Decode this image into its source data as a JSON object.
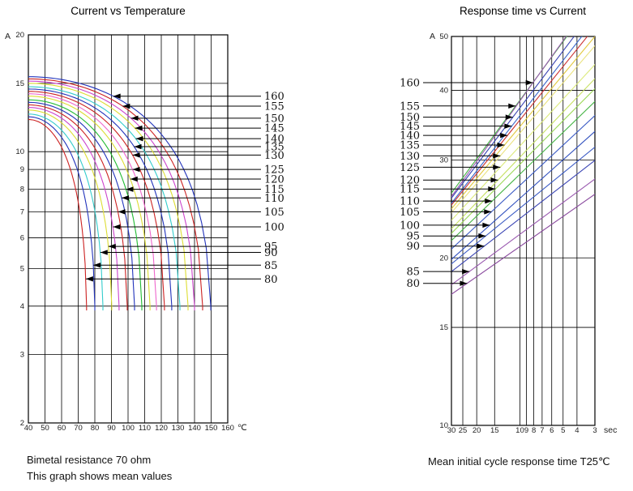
{
  "page": {
    "background": "#ffffff"
  },
  "captions": {
    "left_line1": "Bimetal resistance 70 ohm",
    "left_line2": "This graph shows mean values",
    "right": "Mean initial cycle response time T25℃"
  },
  "chart_data": [
    {
      "type": "line",
      "title": "Current vs Temperature",
      "xlabel": "℃",
      "ylabel": "A",
      "x_scale": "linear",
      "y_scale": "log",
      "xlim": [
        40,
        160
      ],
      "ylim": [
        2,
        20
      ],
      "x_ticks": [
        40,
        50,
        60,
        70,
        80,
        90,
        100,
        110,
        120,
        130,
        140,
        150,
        160
      ],
      "y_ticks": [
        20,
        15,
        10,
        9,
        8,
        7,
        6,
        5,
        4,
        3,
        2
      ],
      "y_tick_special": {
        "value": 15,
        "color": "#9b6fae"
      },
      "grid": true,
      "legend_position": "right-callouts",
      "series": [
        {
          "label": "80",
          "color": "#cc2222",
          "current_at_40C_A": 12.1,
          "dropout_temp_C": 75.0,
          "end_current_A": 3.9,
          "callout_current_A": 4.7
        },
        {
          "label": "85",
          "color": "#2233bb",
          "current_at_40C_A": 12.3,
          "dropout_temp_C": 80.0,
          "end_current_A": 3.9,
          "callout_current_A": 5.1
        },
        {
          "label": "90",
          "color": "#33cccc",
          "current_at_40C_A": 12.5,
          "dropout_temp_C": 84.9,
          "end_current_A": 3.9,
          "callout_current_A": 5.5
        },
        {
          "label": "95",
          "color": "#dddd33",
          "current_at_40C_A": 12.8,
          "dropout_temp_C": 90.2,
          "end_current_A": 3.9,
          "callout_current_A": 5.7
        },
        {
          "label": "100",
          "color": "#cc44cc",
          "current_at_40C_A": 13.0,
          "dropout_temp_C": 94.6,
          "end_current_A": 3.9,
          "callout_current_A": 6.4
        },
        {
          "label": "105",
          "color": "#cc2222",
          "current_at_40C_A": 13.2,
          "dropout_temp_C": 99.5,
          "end_current_A": 3.9,
          "callout_current_A": 7.0
        },
        {
          "label": "110",
          "color": "#2233bb",
          "current_at_40C_A": 13.4,
          "dropout_temp_C": 103.9,
          "end_current_A": 3.9,
          "callout_current_A": 7.6
        },
        {
          "label": "115",
          "color": "#22bb33",
          "current_at_40C_A": 13.6,
          "dropout_temp_C": 108.3,
          "end_current_A": 3.9,
          "callout_current_A": 8.0
        },
        {
          "label": "120",
          "color": "#dddd33",
          "current_at_40C_A": 13.9,
          "dropout_temp_C": 113.2,
          "end_current_A": 3.9,
          "callout_current_A": 8.5
        },
        {
          "label": "125",
          "color": "#ee66cc",
          "current_at_40C_A": 14.1,
          "dropout_temp_C": 117.1,
          "end_current_A": 3.9,
          "callout_current_A": 9.0
        },
        {
          "label": "130",
          "color": "#cc2222",
          "current_at_40C_A": 14.3,
          "dropout_temp_C": 121.9,
          "end_current_A": 3.9,
          "callout_current_A": 9.8
        },
        {
          "label": "135",
          "color": "#2233bb",
          "current_at_40C_A": 14.5,
          "dropout_temp_C": 126.3,
          "end_current_A": 3.9,
          "callout_current_A": 10.3
        },
        {
          "label": "140",
          "color": "#33cccc",
          "current_at_40C_A": 14.7,
          "dropout_temp_C": 131.2,
          "end_current_A": 3.9,
          "callout_current_A": 10.8
        },
        {
          "label": "145",
          "color": "#dddd33",
          "current_at_40C_A": 15.0,
          "dropout_temp_C": 136.1,
          "end_current_A": 3.9,
          "callout_current_A": 11.5
        },
        {
          "label": "150",
          "color": "#cc44cc",
          "current_at_40C_A": 15.2,
          "dropout_temp_C": 140.0,
          "end_current_A": 3.9,
          "callout_current_A": 12.2
        },
        {
          "label": "155",
          "color": "#cc2222",
          "current_at_40C_A": 15.4,
          "dropout_temp_C": 144.9,
          "end_current_A": 3.9,
          "callout_current_A": 13.1
        },
        {
          "label": "160",
          "color": "#2233bb",
          "current_at_40C_A": 15.6,
          "dropout_temp_C": 149.8,
          "end_current_A": 3.9,
          "callout_current_A": 13.9
        }
      ]
    },
    {
      "type": "line",
      "title": "Response time vs Current",
      "xlabel": "sec",
      "ylabel": "A",
      "x_scale": "log-reversed",
      "y_scale": "log",
      "xlim": [
        30,
        3
      ],
      "ylim": [
        10,
        50
      ],
      "x_ticks": [
        30,
        25,
        20,
        15,
        10,
        9,
        8,
        7,
        6,
        5,
        4,
        3
      ],
      "y_ticks": [
        50,
        40,
        30,
        20,
        15,
        10
      ],
      "grid": true,
      "legend_position": "left-callouts",
      "series": [
        {
          "label": "80",
          "color": "#8a4a9e",
          "response_time_s": 23.3,
          "current_A": 18.0,
          "loglog_slope": 0.18
        },
        {
          "label": "85",
          "color": "#9a5ab0",
          "response_time_s": 22.5,
          "current_A": 18.9,
          "loglog_slope": 0.19
        },
        {
          "label": "90",
          "color": "#3a44b4",
          "response_time_s": 17.7,
          "current_A": 21.0,
          "loglog_slope": 0.2
        },
        {
          "label": "95",
          "color": "#3a5ac4",
          "response_time_s": 17.3,
          "current_A": 21.9,
          "loglog_slope": 0.21
        },
        {
          "label": "100",
          "color": "#2f4fbe",
          "response_time_s": 16.2,
          "current_A": 22.9,
          "loglog_slope": 0.23
        },
        {
          "label": "105",
          "color": "#3a5ac4",
          "response_time_s": 15.8,
          "current_A": 24.2,
          "loglog_slope": 0.24
        },
        {
          "label": "110",
          "color": "#44b444",
          "response_time_s": 15.6,
          "current_A": 25.3,
          "loglog_slope": 0.25
        },
        {
          "label": "115",
          "color": "#9ad855",
          "response_time_s": 14.8,
          "current_A": 26.6,
          "loglog_slope": 0.26
        },
        {
          "label": "120",
          "color": "#c6e060",
          "response_time_s": 14.2,
          "current_A": 27.6,
          "loglog_slope": 0.27
        },
        {
          "label": "125",
          "color": "#dcea7c",
          "response_time_s": 13.7,
          "current_A": 29.1,
          "loglog_slope": 0.28
        },
        {
          "label": "130",
          "color": "#eae27e",
          "response_time_s": 13.7,
          "current_A": 30.5,
          "loglog_slope": 0.3
        },
        {
          "label": "135",
          "color": "#e2c83e",
          "response_time_s": 12.8,
          "current_A": 31.9,
          "loglog_slope": 0.31
        },
        {
          "label": "140",
          "color": "#cc3333",
          "response_time_s": 12.2,
          "current_A": 33.2,
          "loglog_slope": 0.32
        },
        {
          "label": "145",
          "color": "#3a66cc",
          "response_time_s": 11.4,
          "current_A": 34.5,
          "loglog_slope": 0.33
        },
        {
          "label": "150",
          "color": "#3a44b4",
          "response_time_s": 11.2,
          "current_A": 35.8,
          "loglog_slope": 0.34
        },
        {
          "label": "155",
          "color": "#44b444",
          "response_time_s": 10.7,
          "current_A": 37.5,
          "loglog_slope": 0.35
        },
        {
          "label": "160",
          "color": "#9a5ab0",
          "response_time_s": 8.1,
          "current_A": 41.3,
          "loglog_slope": 0.36
        }
      ]
    }
  ]
}
